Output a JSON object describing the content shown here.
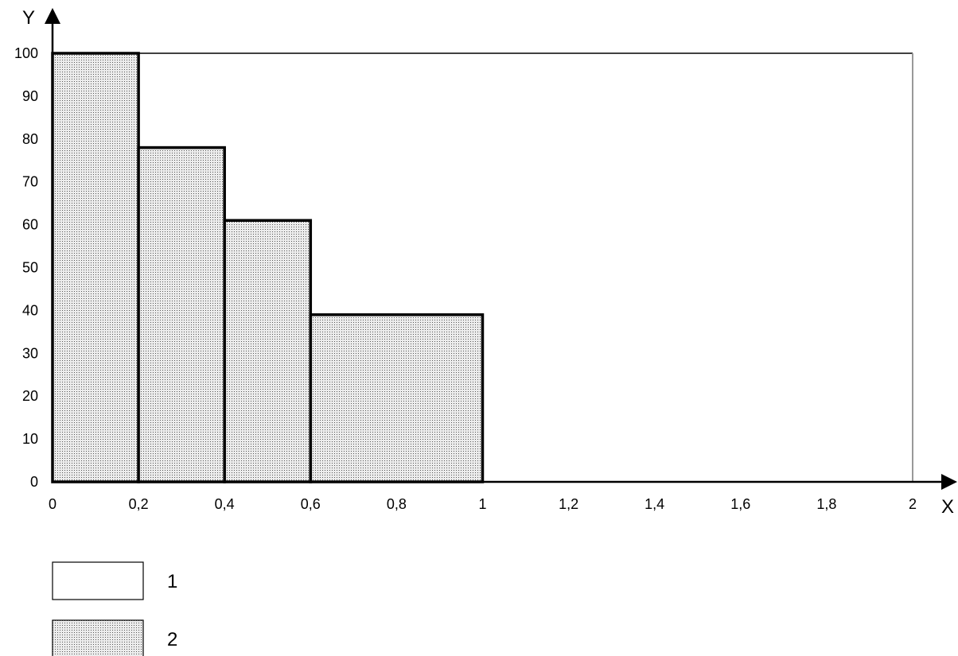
{
  "chart_data": {
    "type": "area",
    "xlabel": "X",
    "ylabel": "Y",
    "xlim": [
      0,
      2
    ],
    "ylim": [
      0,
      100
    ],
    "x_ticks": [
      "0",
      "0,2",
      "0,4",
      "0,6",
      "0,8",
      "1",
      "1,2",
      "1,4",
      "1,6",
      "1,8",
      "2"
    ],
    "x_tick_values": [
      0,
      0.2,
      0.4,
      0.6,
      0.8,
      1,
      1.2,
      1.4,
      1.6,
      1.8,
      2
    ],
    "y_ticks": [
      "0",
      "10",
      "20",
      "30",
      "40",
      "50",
      "60",
      "70",
      "80",
      "90",
      "100"
    ],
    "y_tick_values": [
      0,
      10,
      20,
      30,
      40,
      50,
      60,
      70,
      80,
      90,
      100
    ],
    "grid": false,
    "legend_position": "bottom-left",
    "series": [
      {
        "name": "1",
        "style": "blank",
        "segments": [
          {
            "x0": 0,
            "x1": 2,
            "y": 100
          }
        ]
      },
      {
        "name": "2",
        "style": "dotted",
        "segments": [
          {
            "x0": 0,
            "x1": 0.2,
            "y": 100
          },
          {
            "x0": 0.2,
            "x1": 0.4,
            "y": 78
          },
          {
            "x0": 0.4,
            "x1": 0.6,
            "y": 61
          },
          {
            "x0": 0.6,
            "x1": 1.0,
            "y": 39
          }
        ]
      }
    ],
    "colors": {
      "line": "#000000",
      "dot_fill": "#ececec",
      "dot": "#555555",
      "frame_right": "#999999"
    }
  }
}
